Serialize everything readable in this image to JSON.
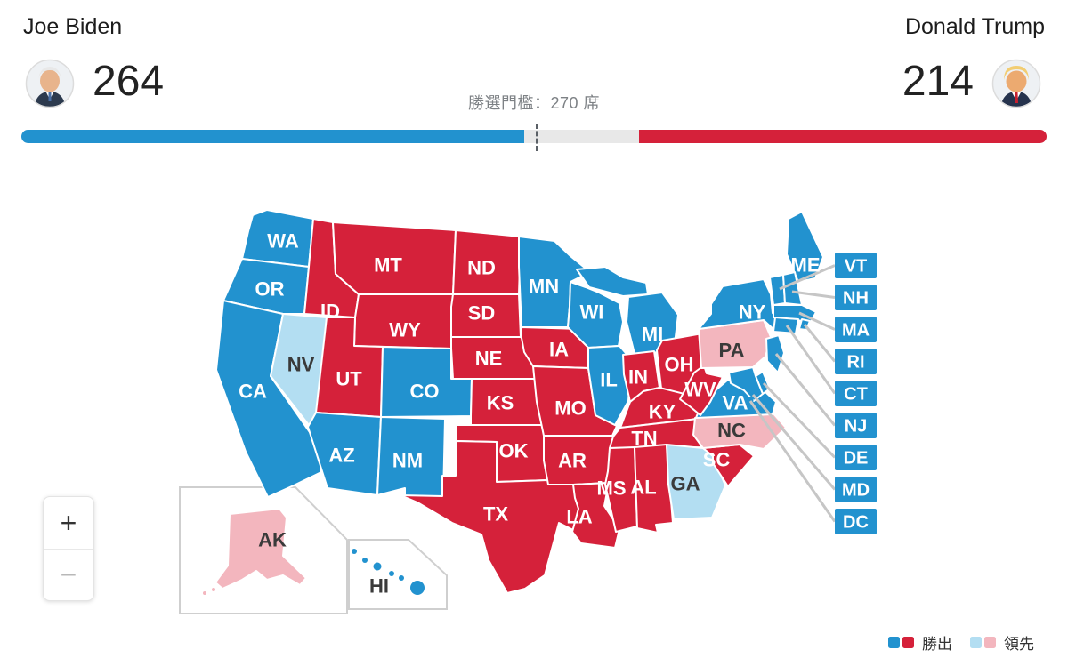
{
  "header": {
    "candidates": [
      {
        "name": "Joe Biden",
        "votes": 264,
        "party": "dem"
      },
      {
        "name": "Donald Trump",
        "votes": 214,
        "party": "rep"
      }
    ],
    "threshold_label": "勝選門檻：270 席",
    "threshold": 270,
    "total_seats": 538
  },
  "bar": {
    "dem": 264,
    "rep": 214,
    "total": 538
  },
  "colors": {
    "dem": "#2292cf",
    "rep": "#d5213a",
    "dem_lead": "#b3def2",
    "rep_lead": "#f3b6be",
    "bar_bg": "#e8e8e8",
    "leader_line": "#c6c6c6",
    "inset_border": "#cfcfcf",
    "label_light": "#ffffff",
    "label_dark": "#3a3a3a"
  },
  "zoom_controls": {
    "zoom_in": "+",
    "zoom_out": "−"
  },
  "legend": {
    "win_label": "勝出",
    "lead_label": "領先"
  },
  "map": {
    "states": [
      {
        "id": "WA",
        "status": "dem"
      },
      {
        "id": "OR",
        "status": "dem"
      },
      {
        "id": "CA",
        "status": "dem"
      },
      {
        "id": "NV",
        "status": "dem_lead"
      },
      {
        "id": "ID",
        "status": "rep"
      },
      {
        "id": "MT",
        "status": "rep"
      },
      {
        "id": "WY",
        "status": "rep"
      },
      {
        "id": "UT",
        "status": "rep"
      },
      {
        "id": "CO",
        "status": "dem"
      },
      {
        "id": "AZ",
        "status": "dem"
      },
      {
        "id": "NM",
        "status": "dem"
      },
      {
        "id": "ND",
        "status": "rep"
      },
      {
        "id": "SD",
        "status": "rep"
      },
      {
        "id": "NE",
        "status": "rep"
      },
      {
        "id": "KS",
        "status": "rep"
      },
      {
        "id": "OK",
        "status": "rep"
      },
      {
        "id": "TX",
        "status": "rep"
      },
      {
        "id": "MN",
        "status": "dem"
      },
      {
        "id": "IA",
        "status": "rep"
      },
      {
        "id": "MO",
        "status": "rep"
      },
      {
        "id": "AR",
        "status": "rep"
      },
      {
        "id": "LA",
        "status": "rep"
      },
      {
        "id": "WI",
        "status": "dem"
      },
      {
        "id": "IL",
        "status": "dem"
      },
      {
        "id": "MI",
        "status": "dem"
      },
      {
        "id": "IN",
        "status": "rep"
      },
      {
        "id": "OH",
        "status": "rep"
      },
      {
        "id": "KY",
        "status": "rep"
      },
      {
        "id": "TN",
        "status": "rep"
      },
      {
        "id": "MS",
        "status": "rep"
      },
      {
        "id": "AL",
        "status": "rep"
      },
      {
        "id": "GA",
        "status": "dem_lead"
      },
      {
        "id": "SC",
        "status": "rep"
      },
      {
        "id": "NC",
        "status": "rep_lead"
      },
      {
        "id": "VA",
        "status": "dem"
      },
      {
        "id": "WV",
        "status": "rep"
      },
      {
        "id": "PA",
        "status": "rep_lead"
      },
      {
        "id": "NY",
        "status": "dem"
      },
      {
        "id": "ME",
        "status": "dem"
      },
      {
        "id": "VT",
        "status": "dem"
      },
      {
        "id": "NH",
        "status": "dem"
      },
      {
        "id": "MA",
        "status": "dem"
      },
      {
        "id": "CT",
        "status": "dem"
      },
      {
        "id": "RI",
        "status": "dem"
      },
      {
        "id": "NJ",
        "status": "dem"
      },
      {
        "id": "DE",
        "status": "dem"
      },
      {
        "id": "MD",
        "status": "dem"
      },
      {
        "id": "DC",
        "status": "dem"
      },
      {
        "id": "AK",
        "status": "rep_lead"
      },
      {
        "id": "HI",
        "status": "dem"
      }
    ],
    "ne_boxes": [
      "VT",
      "NH",
      "MA",
      "RI",
      "CT",
      "NJ",
      "DE",
      "MD",
      "DC"
    ]
  }
}
